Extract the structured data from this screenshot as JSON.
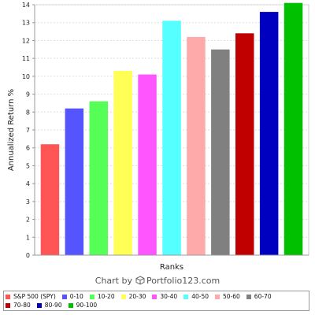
{
  "chart_data": {
    "type": "bar",
    "title": "",
    "xlabel": "Ranks",
    "ylabel": "Annualized Return %",
    "ylim": [
      0,
      14
    ],
    "yticks": [
      0,
      1,
      2,
      3,
      4,
      5,
      6,
      7,
      8,
      9,
      10,
      11,
      12,
      13,
      14
    ],
    "grid": true,
    "legend_position": "bottom",
    "categories": [
      "S&P 500 (SPY)",
      "0-10",
      "10-20",
      "20-30",
      "30-40",
      "40-50",
      "50-60",
      "60-70",
      "70-80",
      "80-90",
      "90-100"
    ],
    "values": [
      6.2,
      8.2,
      8.6,
      10.3,
      10.1,
      13.1,
      12.2,
      11.5,
      12.4,
      13.6,
      14.1
    ],
    "colors": [
      "#ff5555",
      "#5555ff",
      "#55ff55",
      "#ffff55",
      "#ff55ff",
      "#55ffff",
      "#ffaaaa",
      "#808080",
      "#c00000",
      "#0000c0",
      "#00c000"
    ]
  },
  "credit": {
    "prefix": "Chart by",
    "brand": "Portfolio123.com",
    "icon": "cube-icon"
  }
}
